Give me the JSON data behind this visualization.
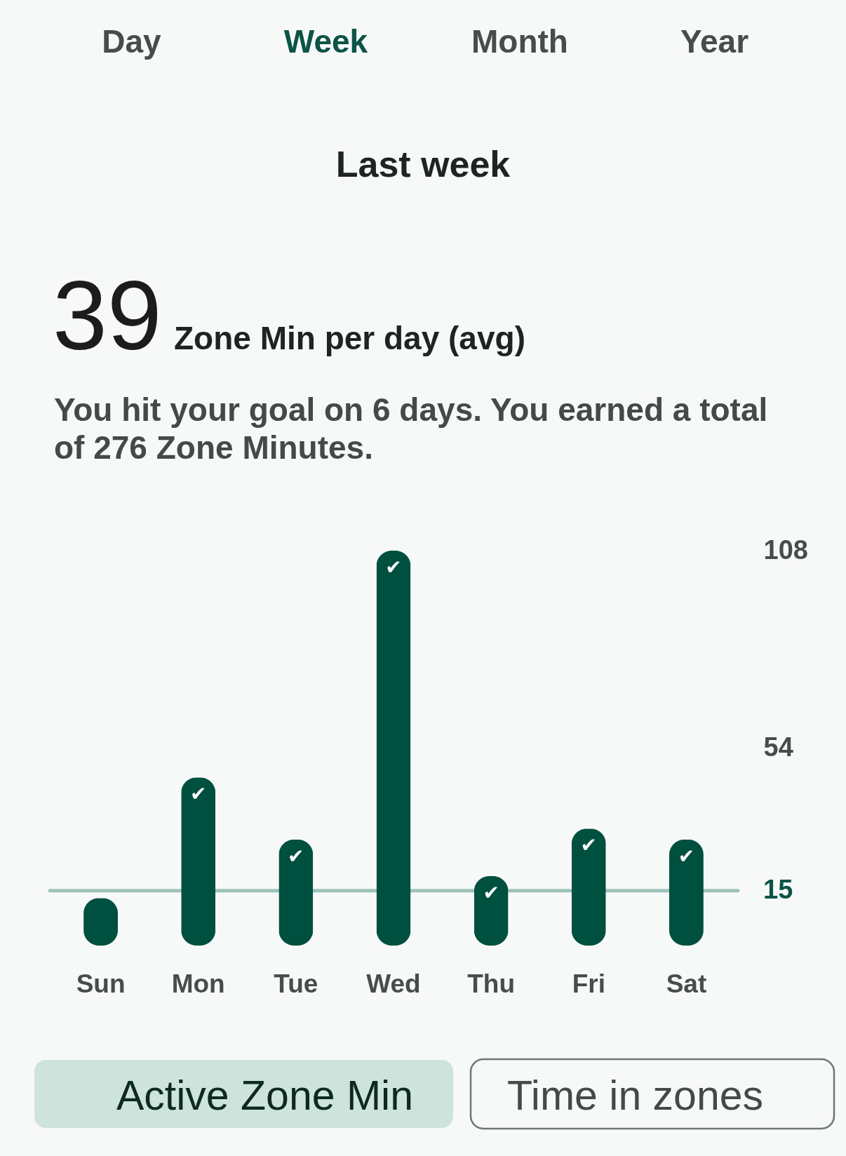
{
  "chart_data": {
    "type": "bar",
    "title": "Last week",
    "categories": [
      "Sun",
      "Mon",
      "Tue",
      "Wed",
      "Thu",
      "Fri",
      "Sat"
    ],
    "values": [
      13,
      46,
      29,
      108,
      19,
      32,
      29
    ],
    "color": "#00503f",
    "ylim": [
      0,
      108
    ],
    "yticks": [
      54,
      108
    ],
    "ref_lines": [
      {
        "axis": "y",
        "value": 15,
        "label": "15",
        "color": "#9fc3ba"
      }
    ],
    "annotations": [
      "Day",
      "Week",
      "Month",
      "Year",
      "39",
      "Zone Min per day (avg)",
      "You hit your goal on 6 days. You earned a total of 276 Zone Minutes.",
      "Active Zone Min",
      "Time in zones",
      {
        "text": "✔",
        "x": "Mon",
        "y": 46
      },
      {
        "text": "✔",
        "x": "Tue",
        "y": 29
      },
      {
        "text": "✔",
        "x": "Wed",
        "y": 108
      },
      {
        "text": "✔",
        "x": "Thu",
        "y": 19
      },
      {
        "text": "✔",
        "x": "Fri",
        "y": 32
      },
      {
        "text": "✔",
        "x": "Sat",
        "y": 29
      }
    ]
  }
}
